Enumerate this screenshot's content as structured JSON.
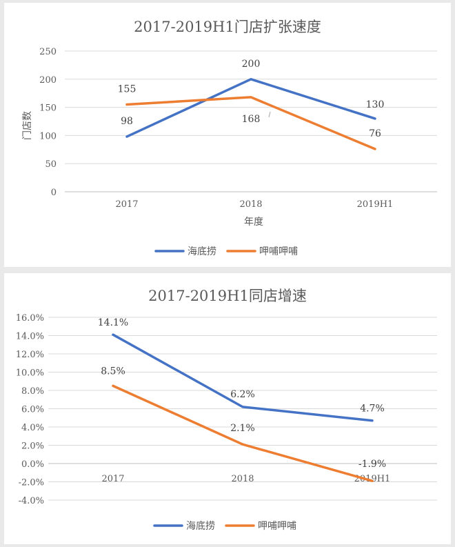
{
  "chart_data": [
    {
      "type": "line",
      "title": "2017-2019H1门店扩张速度",
      "xlabel": "年度",
      "ylabel": "门店数",
      "categories": [
        "2017",
        "2018",
        "2019H1"
      ],
      "ylim": [
        0,
        250
      ],
      "yticks": [
        "0",
        "50",
        "100",
        "150",
        "200",
        "250"
      ],
      "ytick_values": [
        0,
        50,
        100,
        150,
        200,
        250
      ],
      "grid": true,
      "legend_position": "bottom",
      "series": [
        {
          "name": "海底捞",
          "color": "#4472C4",
          "values": [
            98,
            200,
            130
          ],
          "labels": [
            "98",
            "200",
            "130"
          ]
        },
        {
          "name": "呷哺呷哺",
          "color": "#ED7D31",
          "values": [
            155,
            168,
            76
          ],
          "labels": [
            "155",
            "168",
            "76"
          ]
        }
      ]
    },
    {
      "type": "line",
      "title": "2017-2019H1同店增速",
      "xlabel": "",
      "ylabel": "",
      "categories": [
        "2017",
        "2018",
        "2019H1"
      ],
      "ylim": [
        -4,
        16
      ],
      "yticks": [
        "-4.0%",
        "-2.0%",
        "0.0%",
        "2.0%",
        "4.0%",
        "6.0%",
        "8.0%",
        "10.0%",
        "12.0%",
        "14.0%",
        "16.0%"
      ],
      "ytick_values": [
        -4,
        -2,
        0,
        2,
        4,
        6,
        8,
        10,
        12,
        14,
        16
      ],
      "grid": true,
      "legend_position": "bottom",
      "series": [
        {
          "name": "海底捞",
          "color": "#4472C4",
          "values": [
            14.1,
            6.2,
            4.7
          ],
          "labels": [
            "14.1%",
            "6.2%",
            "4.7%"
          ]
        },
        {
          "name": "呷哺呷哺",
          "color": "#ED7D31",
          "values": [
            8.5,
            2.1,
            -1.9
          ],
          "labels": [
            "8.5%",
            "2.1%",
            "-1.9%"
          ]
        }
      ]
    }
  ]
}
